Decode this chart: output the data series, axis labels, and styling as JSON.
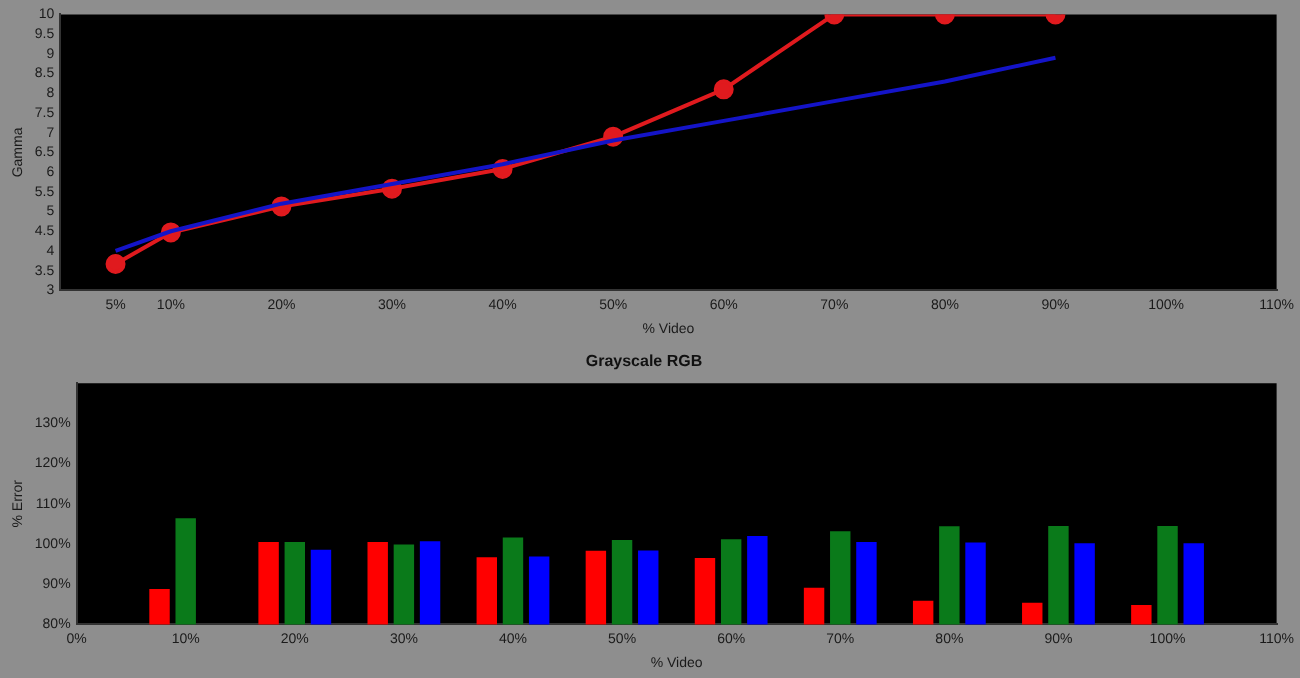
{
  "chart_data": [
    {
      "type": "line",
      "xlabel": "% Video",
      "ylabel": "Gamma",
      "x": [
        5,
        10,
        20,
        30,
        40,
        50,
        60,
        70,
        80,
        90
      ],
      "series": [
        {
          "color": "#1414c8",
          "marker": "none",
          "values": [
            4.0,
            4.5,
            5.2,
            5.7,
            6.2,
            6.8,
            7.3,
            7.8,
            8.3,
            8.9
          ]
        },
        {
          "color": "#e01a1e",
          "marker": "circle",
          "values": [
            3.67,
            4.47,
            5.13,
            5.58,
            6.08,
            6.9,
            8.1,
            10,
            10,
            10
          ]
        }
      ],
      "xlim": [
        0,
        110
      ],
      "xticks": [
        {
          "value": 5,
          "label": "5%"
        },
        {
          "value": 10,
          "label": "10%"
        },
        {
          "value": 20,
          "label": "20%"
        },
        {
          "value": 30,
          "label": "30%"
        },
        {
          "value": 40,
          "label": "40%"
        },
        {
          "value": 50,
          "label": "50%"
        },
        {
          "value": 60,
          "label": "60%"
        },
        {
          "value": 70,
          "label": "70%"
        },
        {
          "value": 80,
          "label": "80%"
        },
        {
          "value": 90,
          "label": "90%"
        },
        {
          "value": 100,
          "label": "100%"
        },
        {
          "value": 110,
          "label": "110%"
        }
      ],
      "ylim": [
        3,
        10
      ],
      "yticks": [
        3,
        3.5,
        4,
        4.5,
        5,
        5.5,
        6,
        6.5,
        7,
        7.5,
        8,
        8.5,
        9,
        9.5,
        10
      ],
      "grid": false,
      "legend": false
    },
    {
      "type": "bar",
      "title": "Grayscale RGB",
      "xlabel": "% Video",
      "ylabel": "% Error",
      "x": [
        10,
        20,
        30,
        40,
        50,
        60,
        70,
        80,
        90,
        100
      ],
      "series": [
        {
          "color": "#ff0000",
          "values": [
            88.8,
            100.5,
            100.5,
            96.7,
            98.3,
            96.5,
            89.1,
            85.9,
            85.4,
            84.8
          ]
        },
        {
          "color": "#0a7a1a",
          "values": [
            106.4,
            100.5,
            99.9,
            101.6,
            101.0,
            101.2,
            103.2,
            104.4,
            104.5,
            104.5
          ]
        },
        {
          "color": "#0000ff",
          "values": [
            null,
            98.6,
            100.7,
            96.9,
            98.4,
            102.0,
            100.5,
            100.4,
            100.2,
            100.2
          ]
        }
      ],
      "xlim": [
        0,
        110
      ],
      "xticks": [
        {
          "value": 0,
          "label": "0%"
        },
        {
          "value": 10,
          "label": "10%"
        },
        {
          "value": 20,
          "label": "20%"
        },
        {
          "value": 30,
          "label": "30%"
        },
        {
          "value": 40,
          "label": "40%"
        },
        {
          "value": 50,
          "label": "50%"
        },
        {
          "value": 60,
          "label": "60%"
        },
        {
          "value": 70,
          "label": "70%"
        },
        {
          "value": 80,
          "label": "80%"
        },
        {
          "value": 90,
          "label": "90%"
        },
        {
          "value": 100,
          "label": "100%"
        },
        {
          "value": 110,
          "label": "110%"
        }
      ],
      "ylim": [
        80,
        140
      ],
      "yticks": [
        {
          "value": 80,
          "label": "80%"
        },
        {
          "value": 90,
          "label": "90%"
        },
        {
          "value": 100,
          "label": "100%"
        },
        {
          "value": 110,
          "label": "110%"
        },
        {
          "value": 120,
          "label": "120%"
        },
        {
          "value": 130,
          "label": "130%"
        }
      ],
      "grid": false,
      "legend": false
    }
  ]
}
